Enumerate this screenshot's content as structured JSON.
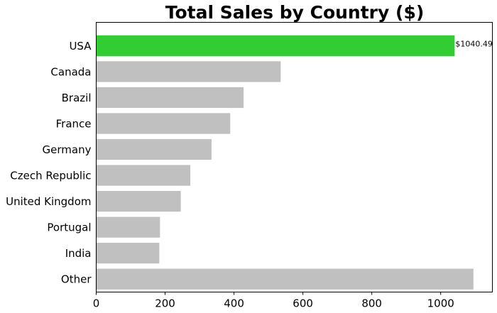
{
  "chart_data": {
    "type": "bar",
    "orientation": "horizontal",
    "title": "Total Sales by Country ($)",
    "xlabel": "",
    "ylabel": "",
    "categories": [
      "USA",
      "Canada",
      "Brazil",
      "France",
      "Germany",
      "Czech Republic",
      "United Kingdom",
      "Portugal",
      "India",
      "Other"
    ],
    "values": [
      1040.49,
      535.59,
      427.68,
      389.07,
      334.62,
      273.24,
      245.52,
      185.13,
      183.15,
      1094.94
    ],
    "xlim": [
      0,
      1150
    ],
    "xticks": [
      0,
      200,
      400,
      600,
      800,
      1000
    ],
    "grid": false,
    "highlight_index": 0,
    "colors": {
      "highlight": "#32cd32",
      "default": "#c0c0c0"
    },
    "annotations": [
      {
        "category": "USA",
        "text": "$1040.49"
      }
    ]
  }
}
